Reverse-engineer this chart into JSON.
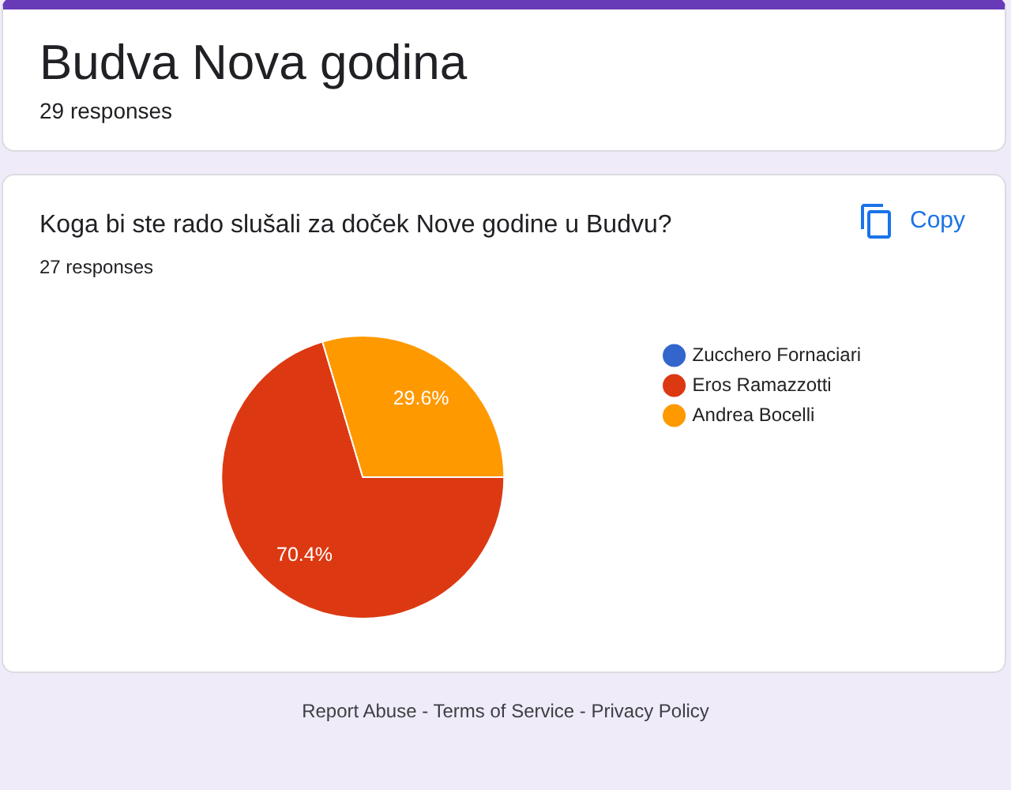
{
  "chart_data": {
    "type": "pie",
    "title": "Koga bi ste rado slušali za doček Nove godine u Budvu?",
    "subtitle": "27 responses",
    "categories": [
      "Zucchero Fornaciari",
      "Eros Ramazzotti",
      "Andrea Bocelli"
    ],
    "values": [
      0,
      70.4,
      29.6
    ],
    "colors": [
      "#3366cc",
      "#dc3912",
      "#ff9900"
    ],
    "value_labels": [
      null,
      "70.4%",
      "29.6%"
    ],
    "legend": "top right",
    "annotations": [
      "Budva Nova godina",
      "29 responses",
      "Copy",
      "Report Abuse - Terms of Service - Privacy Policy"
    ]
  }
}
